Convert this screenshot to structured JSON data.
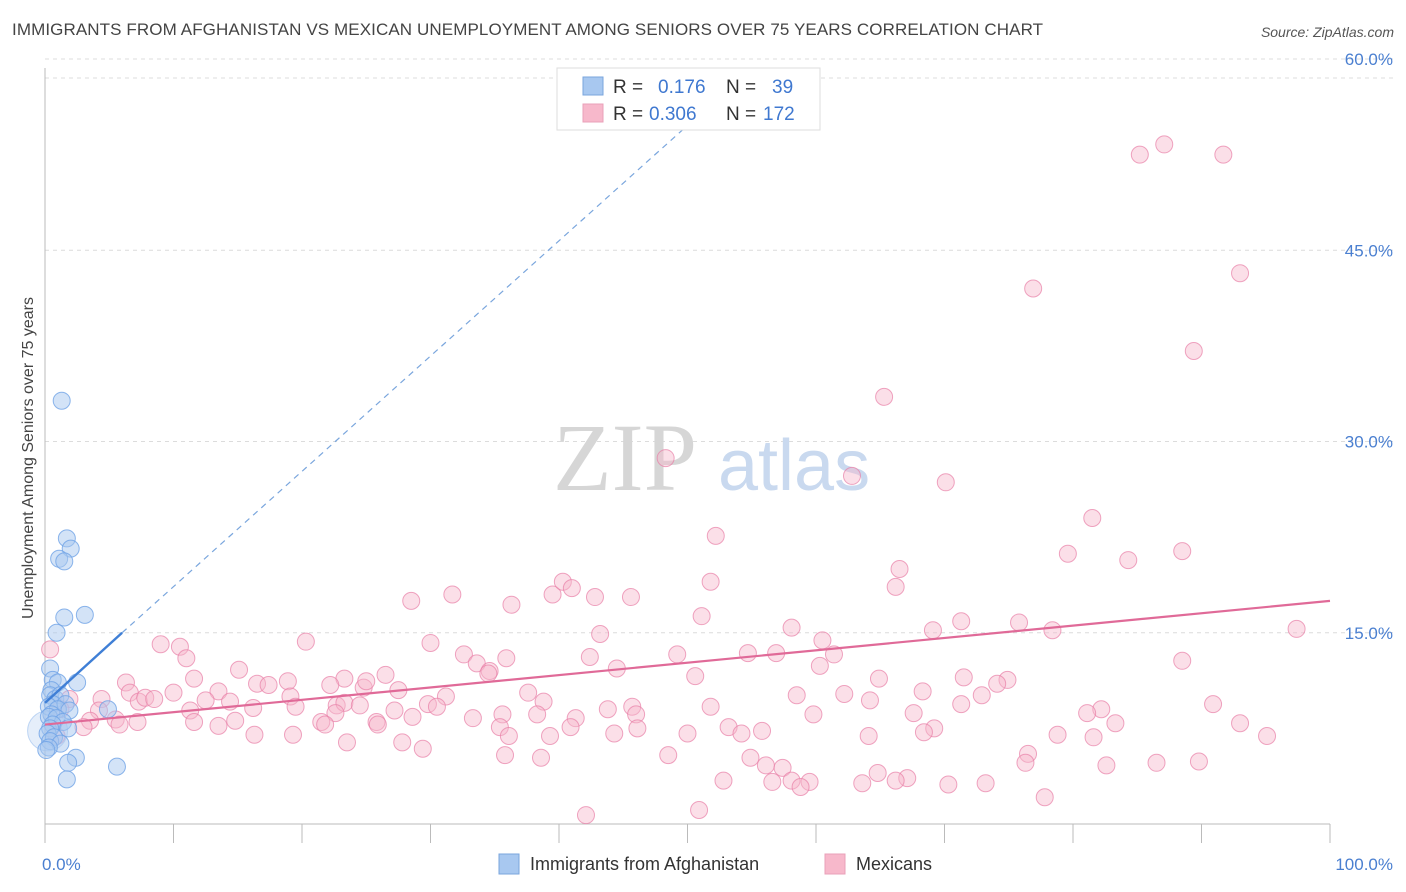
{
  "header": {
    "title": "IMMIGRANTS FROM AFGHANISTAN VS MEXICAN UNEMPLOYMENT AMONG SENIORS OVER 75 YEARS CORRELATION CHART",
    "source": "Source: ZipAtlas.com"
  },
  "watermark": {
    "zip": "ZIP",
    "atlas": "atlas"
  },
  "legend": {
    "rows": [
      {
        "r_label": "R =",
        "r_value": "0.176",
        "n_label": "N =",
        "n_value": "39",
        "color": "#a8c8f0"
      },
      {
        "r_label": "R =",
        "r_value": "0.306",
        "n_label": "N =",
        "n_value": "172",
        "color": "#f7b8cb"
      }
    ]
  },
  "bottom_legend": [
    {
      "label": "Immigrants from Afghanistan",
      "color": "#a8c8f0"
    },
    {
      "label": "Mexicans",
      "color": "#f7b8cb"
    }
  ],
  "chart_data": {
    "type": "scatter",
    "title": "IMMIGRANTS FROM AFGHANISTAN VS MEXICAN UNEMPLOYMENT AMONG SENIORS OVER 75 YEARS CORRELATION CHART",
    "xlabel": "",
    "ylabel": "Unemployment Among Seniors over 75 years",
    "xlim": [
      0,
      100
    ],
    "ylim": [
      0,
      63
    ],
    "x_tick_labels": [
      "0.0%",
      "100.0%"
    ],
    "y_ticks": [
      15,
      30,
      45,
      60
    ],
    "y_tick_labels": [
      "15.0%",
      "30.0%",
      "45.0%",
      "60.0%"
    ],
    "grid": true,
    "legend_position": "top-center",
    "series": [
      {
        "name": "Immigrants from Afghanistan",
        "color": "#6fa3e6",
        "fill": "#a8c8f0",
        "trend": {
          "x": [
            0.0,
            6.0
          ],
          "y": [
            9.5,
            15.0
          ],
          "dashed_extension_to": [
            53.0,
            57.5
          ]
        },
        "points": [
          [
            1.3,
            33.2
          ],
          [
            1.7,
            22.4
          ],
          [
            2.0,
            21.6
          ],
          [
            1.1,
            20.8
          ],
          [
            1.5,
            20.6
          ],
          [
            0.9,
            15.0
          ],
          [
            1.5,
            16.2
          ],
          [
            3.1,
            16.4
          ],
          [
            0.4,
            12.2
          ],
          [
            0.6,
            11.3
          ],
          [
            1.0,
            11.1
          ],
          [
            2.5,
            11.1
          ],
          [
            0.5,
            10.5
          ],
          [
            0.4,
            10.1
          ],
          [
            0.8,
            9.8
          ],
          [
            1.2,
            10.1
          ],
          [
            0.6,
            9.4
          ],
          [
            1.6,
            9.4
          ],
          [
            0.3,
            9.2
          ],
          [
            1.0,
            9.0
          ],
          [
            0.5,
            8.6
          ],
          [
            1.9,
            8.9
          ],
          [
            0.3,
            8.4
          ],
          [
            0.9,
            8.3
          ],
          [
            1.4,
            8.0
          ],
          [
            0.6,
            7.8
          ],
          [
            0.4,
            7.5
          ],
          [
            1.8,
            7.5
          ],
          [
            0.2,
            7.1
          ],
          [
            0.7,
            6.8
          ],
          [
            0.4,
            6.5
          ],
          [
            1.2,
            6.3
          ],
          [
            0.3,
            6.0
          ],
          [
            0.1,
            5.8
          ],
          [
            2.4,
            5.2
          ],
          [
            1.8,
            4.8
          ],
          [
            5.6,
            4.5
          ],
          [
            1.7,
            3.5
          ],
          [
            4.9,
            9.0
          ]
        ]
      },
      {
        "name": "Mexicans",
        "color": "#e87fa6",
        "fill": "#f7b8cb",
        "trend": {
          "x": [
            0,
            100
          ],
          "y": [
            7.8,
            17.5
          ]
        },
        "points": [
          [
            85.2,
            52.5
          ],
          [
            87.1,
            53.3
          ],
          [
            91.7,
            52.5
          ],
          [
            76.9,
            42.0
          ],
          [
            93.0,
            43.2
          ],
          [
            89.4,
            37.1
          ],
          [
            65.3,
            33.5
          ],
          [
            48.3,
            28.7
          ],
          [
            62.8,
            27.3
          ],
          [
            70.1,
            26.8
          ],
          [
            81.5,
            24.0
          ],
          [
            52.2,
            22.6
          ],
          [
            79.6,
            21.2
          ],
          [
            84.3,
            20.7
          ],
          [
            88.5,
            21.4
          ],
          [
            66.5,
            20.0
          ],
          [
            66.2,
            18.6
          ],
          [
            51.8,
            19.0
          ],
          [
            39.5,
            18.0
          ],
          [
            40.3,
            19.0
          ],
          [
            41.0,
            18.5
          ],
          [
            42.8,
            17.8
          ],
          [
            45.6,
            17.8
          ],
          [
            31.7,
            18.0
          ],
          [
            28.5,
            17.5
          ],
          [
            36.3,
            17.2
          ],
          [
            51.1,
            16.3
          ],
          [
            58.1,
            15.4
          ],
          [
            71.3,
            15.9
          ],
          [
            75.8,
            15.8
          ],
          [
            78.4,
            15.2
          ],
          [
            97.4,
            15.3
          ],
          [
            69.1,
            15.2
          ],
          [
            60.5,
            14.4
          ],
          [
            20.3,
            14.3
          ],
          [
            30.0,
            14.2
          ],
          [
            9.0,
            14.1
          ],
          [
            10.5,
            13.9
          ],
          [
            0.4,
            13.7
          ],
          [
            43.2,
            14.9
          ],
          [
            42.4,
            13.1
          ],
          [
            49.2,
            13.3
          ],
          [
            54.7,
            13.4
          ],
          [
            56.9,
            13.4
          ],
          [
            61.4,
            13.3
          ],
          [
            32.6,
            13.3
          ],
          [
            35.9,
            13.0
          ],
          [
            33.6,
            12.6
          ],
          [
            34.6,
            12.0
          ],
          [
            11.0,
            13.0
          ],
          [
            60.3,
            12.4
          ],
          [
            44.5,
            12.2
          ],
          [
            15.1,
            12.1
          ],
          [
            23.3,
            11.4
          ],
          [
            26.5,
            11.7
          ],
          [
            34.5,
            11.8
          ],
          [
            50.6,
            11.6
          ],
          [
            64.9,
            11.4
          ],
          [
            71.5,
            11.5
          ],
          [
            74.9,
            11.3
          ],
          [
            74.1,
            11.0
          ],
          [
            88.5,
            12.8
          ],
          [
            6.3,
            11.1
          ],
          [
            11.6,
            11.4
          ],
          [
            16.5,
            11.0
          ],
          [
            18.9,
            11.2
          ],
          [
            24.8,
            10.7
          ],
          [
            17.4,
            10.9
          ],
          [
            22.2,
            10.9
          ],
          [
            25.0,
            11.2
          ],
          [
            27.5,
            10.5
          ],
          [
            6.6,
            10.3
          ],
          [
            10.0,
            10.3
          ],
          [
            13.5,
            10.4
          ],
          [
            19.1,
            10.0
          ],
          [
            31.2,
            10.0
          ],
          [
            37.6,
            10.3
          ],
          [
            62.2,
            10.2
          ],
          [
            68.3,
            10.4
          ],
          [
            58.5,
            10.1
          ],
          [
            1.9,
            9.8
          ],
          [
            4.4,
            9.8
          ],
          [
            7.3,
            9.6
          ],
          [
            7.8,
            9.9
          ],
          [
            8.5,
            9.8
          ],
          [
            12.5,
            9.7
          ],
          [
            14.4,
            9.6
          ],
          [
            22.7,
            9.3
          ],
          [
            23.3,
            9.5
          ],
          [
            24.5,
            9.3
          ],
          [
            29.8,
            9.4
          ],
          [
            38.8,
            9.6
          ],
          [
            43.8,
            9.0
          ],
          [
            45.7,
            9.2
          ],
          [
            51.8,
            9.2
          ],
          [
            64.2,
            9.7
          ],
          [
            71.3,
            9.4
          ],
          [
            72.9,
            10.1
          ],
          [
            82.2,
            9.0
          ],
          [
            90.9,
            9.4
          ],
          [
            1.2,
            9.0
          ],
          [
            4.2,
            8.9
          ],
          [
            11.3,
            8.9
          ],
          [
            16.2,
            9.1
          ],
          [
            19.5,
            9.2
          ],
          [
            22.6,
            8.7
          ],
          [
            27.2,
            8.9
          ],
          [
            30.5,
            9.2
          ],
          [
            35.6,
            8.6
          ],
          [
            28.6,
            8.4
          ],
          [
            33.3,
            8.3
          ],
          [
            38.3,
            8.6
          ],
          [
            41.3,
            8.3
          ],
          [
            46.0,
            8.6
          ],
          [
            59.8,
            8.6
          ],
          [
            67.6,
            8.7
          ],
          [
            81.1,
            8.7
          ],
          [
            3.5,
            8.1
          ],
          [
            5.5,
            8.2
          ],
          [
            7.2,
            8.0
          ],
          [
            11.6,
            8.0
          ],
          [
            14.8,
            8.1
          ],
          [
            21.5,
            8.0
          ],
          [
            25.8,
            8.0
          ],
          [
            3.0,
            7.6
          ],
          [
            5.8,
            7.8
          ],
          [
            13.5,
            7.7
          ],
          [
            21.8,
            7.8
          ],
          [
            25.9,
            7.8
          ],
          [
            35.4,
            7.6
          ],
          [
            40.9,
            7.6
          ],
          [
            46.1,
            7.5
          ],
          [
            53.2,
            7.6
          ],
          [
            55.8,
            7.3
          ],
          [
            69.2,
            7.5
          ],
          [
            83.3,
            7.9
          ],
          [
            93.0,
            7.9
          ],
          [
            0.9,
            6.9
          ],
          [
            16.3,
            7.0
          ],
          [
            19.3,
            7.0
          ],
          [
            23.5,
            6.4
          ],
          [
            27.8,
            6.4
          ],
          [
            36.1,
            6.9
          ],
          [
            39.3,
            6.9
          ],
          [
            44.3,
            7.1
          ],
          [
            50.0,
            7.1
          ],
          [
            54.2,
            7.1
          ],
          [
            64.1,
            6.9
          ],
          [
            68.4,
            7.2
          ],
          [
            78.8,
            7.0
          ],
          [
            81.6,
            6.8
          ],
          [
            95.1,
            6.9
          ],
          [
            29.4,
            5.9
          ],
          [
            35.8,
            5.4
          ],
          [
            38.6,
            5.2
          ],
          [
            48.5,
            5.4
          ],
          [
            54.9,
            5.2
          ],
          [
            56.1,
            4.6
          ],
          [
            57.4,
            4.4
          ],
          [
            64.8,
            4.0
          ],
          [
            67.1,
            3.6
          ],
          [
            76.5,
            5.5
          ],
          [
            76.3,
            4.8
          ],
          [
            82.6,
            4.6
          ],
          [
            86.5,
            4.8
          ],
          [
            89.8,
            4.9
          ],
          [
            52.8,
            3.4
          ],
          [
            56.6,
            3.3
          ],
          [
            58.1,
            3.4
          ],
          [
            59.5,
            3.3
          ],
          [
            63.6,
            3.2
          ],
          [
            66.2,
            3.4
          ],
          [
            70.3,
            3.1
          ],
          [
            73.2,
            3.2
          ],
          [
            77.8,
            2.1
          ],
          [
            50.9,
            1.1
          ],
          [
            42.1,
            0.7
          ],
          [
            58.8,
            2.9
          ]
        ]
      }
    ]
  }
}
